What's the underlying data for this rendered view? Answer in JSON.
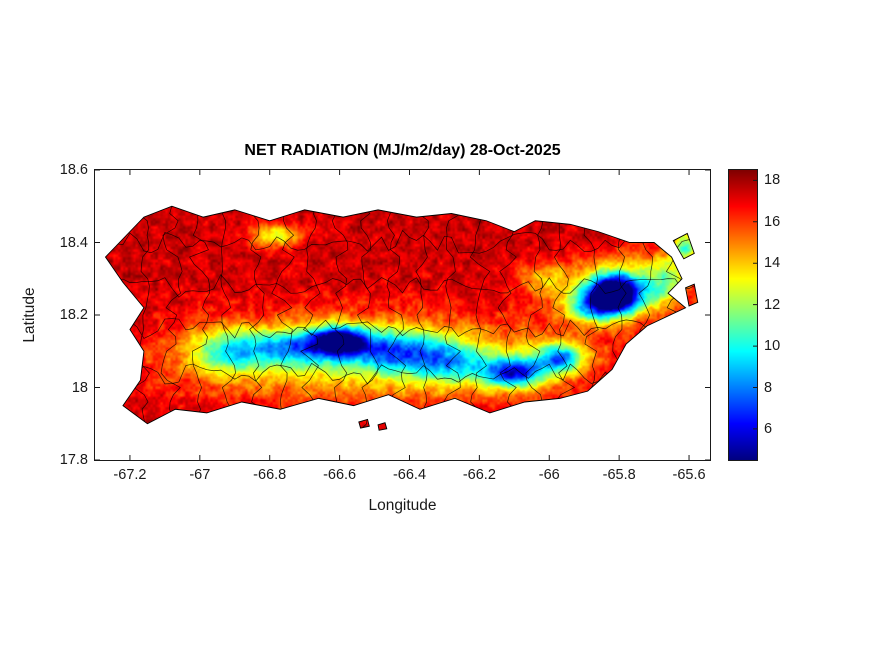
{
  "figure": {
    "background": "#ffffff",
    "axis_color": "#1a1a1a"
  },
  "chart_data": {
    "type": "heatmap",
    "title": "NET RADIATION (MJ/m2/day) 28-Oct-2025",
    "xlabel": "Longitude",
    "ylabel": "Latitude",
    "region": "Puerto Rico municipalities choropleth-style gridded field",
    "xlim": [
      -67.3,
      -65.54
    ],
    "ylim": [
      17.8,
      18.6
    ],
    "xticks": [
      -67.2,
      -67.0,
      -66.8,
      -66.6,
      -66.4,
      -66.2,
      -66.0,
      -65.8,
      -65.6
    ],
    "xtick_labels": [
      "-67.2",
      "-67",
      "-66.8",
      "-66.6",
      "-66.4",
      "-66.2",
      "-66",
      "-65.8",
      "-65.6"
    ],
    "yticks": [
      17.8,
      18.0,
      18.2,
      18.4,
      18.6
    ],
    "ytick_labels": [
      "17.8",
      "18",
      "18.2",
      "18.4",
      "18.6"
    ],
    "colormap": "jet",
    "value_units": "MJ/m2/day",
    "value_range": [
      4.5,
      18.5
    ],
    "colorbar_ticks": [
      6,
      8,
      10,
      12,
      14,
      16,
      18
    ],
    "colorbar_tick_labels": [
      "6",
      "8",
      "10",
      "12",
      "14",
      "16",
      "18"
    ],
    "base_value": 17.4,
    "noise_amplitude": 1.2,
    "grid_on": false,
    "legend": "colorbar-right",
    "island_polygons": [
      [
        [
          -67.27,
          18.36
        ],
        [
          -67.23,
          18.4
        ],
        [
          -67.16,
          18.47
        ],
        [
          -67.08,
          18.5
        ],
        [
          -66.99,
          18.47
        ],
        [
          -66.9,
          18.49
        ],
        [
          -66.8,
          18.46
        ],
        [
          -66.7,
          18.49
        ],
        [
          -66.59,
          18.47
        ],
        [
          -66.49,
          18.49
        ],
        [
          -66.38,
          18.47
        ],
        [
          -66.28,
          18.48
        ],
        [
          -66.18,
          18.46
        ],
        [
          -66.1,
          18.43
        ],
        [
          -66.04,
          18.46
        ],
        [
          -65.94,
          18.45
        ],
        [
          -65.86,
          18.43
        ],
        [
          -65.77,
          18.4
        ],
        [
          -65.7,
          18.4
        ],
        [
          -65.65,
          18.36
        ],
        [
          -65.62,
          18.3
        ],
        [
          -65.66,
          18.26
        ],
        [
          -65.61,
          18.22
        ],
        [
          -65.72,
          18.17
        ],
        [
          -65.78,
          18.12
        ],
        [
          -65.82,
          18.05
        ],
        [
          -65.89,
          17.99
        ],
        [
          -65.97,
          17.97
        ],
        [
          -66.07,
          17.96
        ],
        [
          -66.17,
          17.93
        ],
        [
          -66.27,
          17.97
        ],
        [
          -66.37,
          17.94
        ],
        [
          -66.46,
          17.98
        ],
        [
          -66.56,
          17.95
        ],
        [
          -66.66,
          17.97
        ],
        [
          -66.77,
          17.94
        ],
        [
          -66.88,
          17.96
        ],
        [
          -66.98,
          17.93
        ],
        [
          -67.07,
          17.94
        ],
        [
          -67.15,
          17.9
        ],
        [
          -67.22,
          17.95
        ],
        [
          -67.17,
          18.02
        ],
        [
          -67.16,
          18.1
        ],
        [
          -67.2,
          18.16
        ],
        [
          -67.16,
          18.22
        ],
        [
          -67.22,
          18.29
        ]
      ],
      [
        [
          -65.645,
          18.405
        ],
        [
          -65.605,
          18.425
        ],
        [
          -65.585,
          18.37
        ],
        [
          -65.615,
          18.355
        ]
      ],
      [
        [
          -65.61,
          18.275
        ],
        [
          -65.585,
          18.285
        ],
        [
          -65.575,
          18.235
        ],
        [
          -65.6,
          18.225
        ]
      ],
      [
        [
          -66.545,
          17.905
        ],
        [
          -66.52,
          17.912
        ],
        [
          -66.515,
          17.893
        ],
        [
          -66.54,
          17.888
        ]
      ],
      [
        [
          -66.49,
          17.897
        ],
        [
          -66.47,
          17.903
        ],
        [
          -66.465,
          17.886
        ],
        [
          -66.487,
          17.882
        ]
      ]
    ],
    "cool_spots": [
      {
        "lon": -66.6,
        "lat": 18.13,
        "sx": 0.055,
        "sy": 0.028,
        "d": 10.5
      },
      {
        "lon": -66.73,
        "lat": 18.11,
        "sx": 0.09,
        "sy": 0.035,
        "d": 6
      },
      {
        "lon": -66.92,
        "lat": 18.1,
        "sx": 0.08,
        "sy": 0.045,
        "d": 5
      },
      {
        "lon": -66.45,
        "lat": 18.1,
        "sx": 0.09,
        "sy": 0.04,
        "d": 6
      },
      {
        "lon": -66.28,
        "lat": 18.07,
        "sx": 0.08,
        "sy": 0.04,
        "d": 5
      },
      {
        "lon": -66.1,
        "lat": 18.04,
        "sx": 0.06,
        "sy": 0.03,
        "d": 9.5
      },
      {
        "lon": -65.97,
        "lat": 18.08,
        "sx": 0.05,
        "sy": 0.03,
        "d": 8
      },
      {
        "lon": -65.81,
        "lat": 18.26,
        "sx": 0.055,
        "sy": 0.035,
        "d": 12.5
      },
      {
        "lon": -65.87,
        "lat": 18.22,
        "sx": 0.06,
        "sy": 0.03,
        "d": 6
      },
      {
        "lon": -66.5,
        "lat": 18.08,
        "sx": 0.4,
        "sy": 0.085,
        "d": 4.2
      },
      {
        "lon": -65.8,
        "lat": 18.28,
        "sx": 0.11,
        "sy": 0.06,
        "d": 4.5
      },
      {
        "lon": -66.78,
        "lat": 18.42,
        "sx": 0.05,
        "sy": 0.022,
        "d": 4.5
      },
      {
        "lon": -65.61,
        "lat": 18.39,
        "sx": 0.025,
        "sy": 0.03,
        "d": 6.5
      },
      {
        "lon": -66.02,
        "lat": 18.3,
        "sx": 0.05,
        "sy": 0.03,
        "d": 3
      },
      {
        "lon": -65.66,
        "lat": 18.3,
        "sx": 0.04,
        "sy": 0.05,
        "d": 4
      }
    ],
    "boundary_lons": [
      -67.16,
      -67.08,
      -67.0,
      -66.92,
      -66.84,
      -66.76,
      -66.68,
      -66.6,
      -66.52,
      -66.44,
      -66.36,
      -66.28,
      -66.2,
      -66.12,
      -66.04,
      -65.96,
      -65.88,
      -65.8,
      -65.72,
      -65.64
    ],
    "boundary_lats": [
      18.04,
      18.16,
      18.28,
      18.4
    ]
  }
}
